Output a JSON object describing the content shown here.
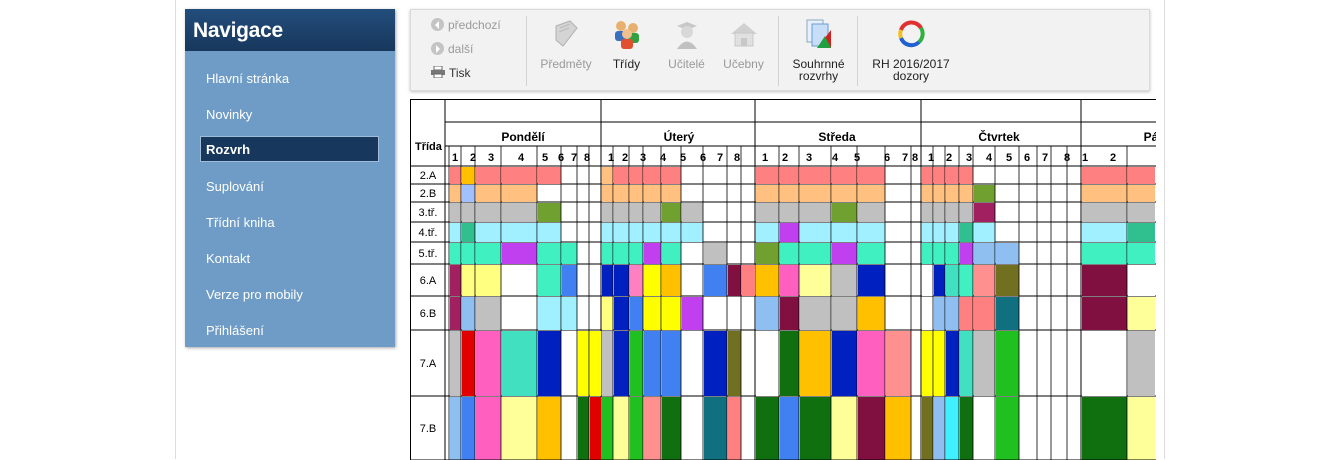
{
  "navigation": {
    "title": "Navigace",
    "items": [
      "Hlavní stránka",
      "Novinky",
      "Rozvrh",
      "Suplování",
      "Třídní kniha",
      "Kontakt",
      "Verze pro mobily",
      "Přihlášení"
    ],
    "active": "Rozvrh"
  },
  "toolbar": {
    "prev": "předchozí",
    "next": "další",
    "print": "Tisk",
    "buttons": {
      "subjects": "Předměty",
      "classes": "Třídy",
      "teachers": "Učitelé",
      "rooms": "Učebny",
      "summary_l1": "Souhrnné",
      "summary_l2": "rozvrhy",
      "rh_l1": "RH 2016/2017",
      "rh_l2": "dozory"
    }
  },
  "timetable": {
    "corner_label": "Třída",
    "days": [
      "Pondělí",
      "Úterý",
      "Středa",
      "Čtvrtek",
      "Pá"
    ],
    "rows": [
      "2.A",
      "2.B",
      "3.tř.",
      "4.tř.",
      "5.tř.",
      "6.A",
      "6.B",
      "7.A",
      "7.B"
    ]
  },
  "colors": {
    "nav_bg": "#6f9cc6",
    "nav_header": "#1f4670",
    "Čj": "#c0c0c0",
    "M": "#8fbef0",
    "Tv": "#ffc000",
    "Ct": "#a0ffa0",
    "Prv": "#a0e0ff",
    "Vv": "#ffff99",
    "Hv": "#b060ff",
    "D": "#40e0c0",
    "Nj": "#20c020",
    "Rj": "#ff6080",
    "F": "#ff9090",
    "Inf": "#ff9040"
  }
}
